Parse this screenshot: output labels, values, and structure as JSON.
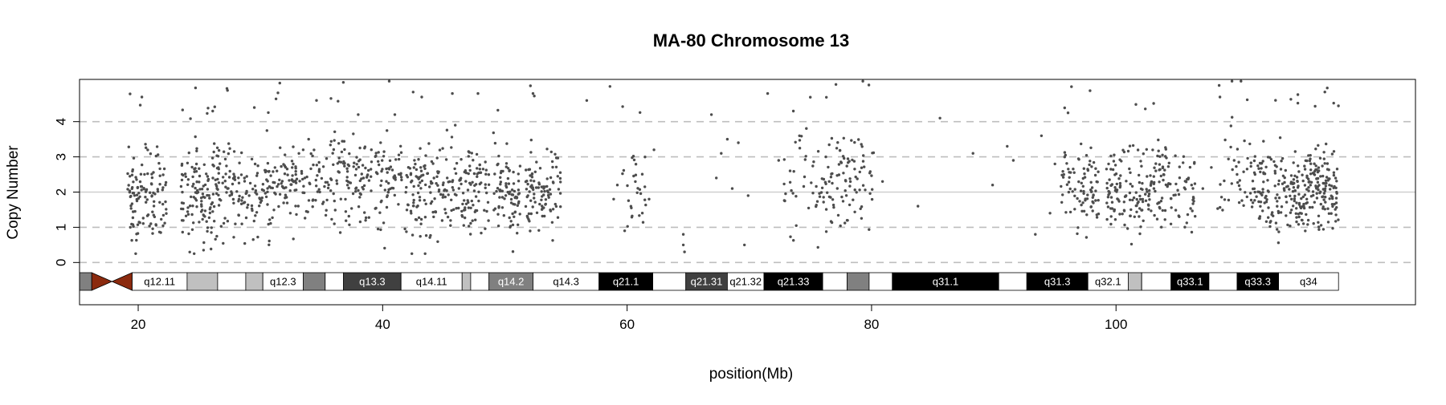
{
  "chart_data": {
    "type": "scatter",
    "title": "MA-80  Chromosome 13",
    "xlabel": "position(Mb)",
    "ylabel": "Copy Number",
    "xlim": [
      15.2,
      124.5
    ],
    "ylim": [
      -1.2,
      5.2
    ],
    "x_ticks": [
      20,
      40,
      60,
      80,
      100
    ],
    "y_ticks": [
      0,
      1,
      2,
      3,
      4
    ],
    "dashed_reference_lines": [
      0,
      1,
      3,
      4
    ],
    "solid_reference_line": 2,
    "colors": {
      "points": "#4d4d4d",
      "dashed_lines": "#bebebe",
      "solid_line": "#cfcfcf",
      "centromere": "#8b2a0e"
    },
    "ideogram": {
      "centromere_mb": [
        16.2,
        19.5
      ],
      "bands": [
        {
          "start": 15.2,
          "end": 16.2,
          "color": "#808080",
          "label": ""
        },
        {
          "start": 19.5,
          "end": 24.0,
          "color": "#ffffff",
          "label": "q12.11"
        },
        {
          "start": 24.0,
          "end": 26.5,
          "color": "#c0c0c0",
          "label": ""
        },
        {
          "start": 26.5,
          "end": 28.8,
          "color": "#ffffff",
          "label": ""
        },
        {
          "start": 28.8,
          "end": 30.2,
          "color": "#c0c0c0",
          "label": ""
        },
        {
          "start": 30.2,
          "end": 33.5,
          "color": "#ffffff",
          "label": "q12.3"
        },
        {
          "start": 33.5,
          "end": 35.3,
          "color": "#808080",
          "label": ""
        },
        {
          "start": 35.3,
          "end": 36.8,
          "color": "#ffffff",
          "label": ""
        },
        {
          "start": 36.8,
          "end": 41.5,
          "color": "#404040",
          "label": "q13.3"
        },
        {
          "start": 41.5,
          "end": 46.5,
          "color": "#ffffff",
          "label": "q14.11"
        },
        {
          "start": 46.5,
          "end": 47.2,
          "color": "#c0c0c0",
          "label": ""
        },
        {
          "start": 47.2,
          "end": 48.7,
          "color": "#ffffff",
          "label": ""
        },
        {
          "start": 48.7,
          "end": 52.3,
          "color": "#808080",
          "label": "q14.2"
        },
        {
          "start": 52.3,
          "end": 57.7,
          "color": "#ffffff",
          "label": "q14.3"
        },
        {
          "start": 57.7,
          "end": 62.1,
          "color": "#000000",
          "label": "q21.1"
        },
        {
          "start": 62.1,
          "end": 64.8,
          "color": "#ffffff",
          "label": ""
        },
        {
          "start": 64.8,
          "end": 68.2,
          "color": "#404040",
          "label": "q21.31"
        },
        {
          "start": 68.2,
          "end": 71.2,
          "color": "#ffffff",
          "label": "q21.32"
        },
        {
          "start": 71.2,
          "end": 76.0,
          "color": "#000000",
          "label": "q21.33"
        },
        {
          "start": 76.0,
          "end": 78.0,
          "color": "#ffffff",
          "label": ""
        },
        {
          "start": 78.0,
          "end": 79.8,
          "color": "#808080",
          "label": ""
        },
        {
          "start": 79.8,
          "end": 81.7,
          "color": "#ffffff",
          "label": ""
        },
        {
          "start": 81.7,
          "end": 90.4,
          "color": "#000000",
          "label": "q31.1"
        },
        {
          "start": 90.4,
          "end": 92.7,
          "color": "#ffffff",
          "label": ""
        },
        {
          "start": 92.7,
          "end": 97.7,
          "color": "#000000",
          "label": "q31.3"
        },
        {
          "start": 97.7,
          "end": 101.0,
          "color": "#ffffff",
          "label": "q32.1"
        },
        {
          "start": 101.0,
          "end": 102.1,
          "color": "#c0c0c0",
          "label": ""
        },
        {
          "start": 102.1,
          "end": 104.5,
          "color": "#ffffff",
          "label": ""
        },
        {
          "start": 104.5,
          "end": 107.6,
          "color": "#000000",
          "label": "q33.1"
        },
        {
          "start": 107.6,
          "end": 109.9,
          "color": "#ffffff",
          "label": ""
        },
        {
          "start": 109.9,
          "end": 113.3,
          "color": "#000000",
          "label": "q33.3"
        },
        {
          "start": 113.3,
          "end": 118.2,
          "color": "#ffffff",
          "label": "q34"
        }
      ]
    },
    "clusters": [
      {
        "x": [
          19.0,
          22.3
        ],
        "n": 120,
        "mean": 1.8,
        "sd": 0.6
      },
      {
        "x": [
          23.5,
          26.8
        ],
        "n": 140,
        "mean": 2.0,
        "sd": 0.7
      },
      {
        "x": [
          26.8,
          31.0
        ],
        "n": 120,
        "mean": 2.0,
        "sd": 0.6
      },
      {
        "x": [
          31.0,
          36.5
        ],
        "n": 140,
        "mean": 2.2,
        "sd": 0.6
      },
      {
        "x": [
          36.5,
          41.8
        ],
        "n": 140,
        "mean": 2.4,
        "sd": 0.6
      },
      {
        "x": [
          41.8,
          45.2
        ],
        "n": 110,
        "mean": 2.0,
        "sd": 0.7
      },
      {
        "x": [
          45.2,
          48.7
        ],
        "n": 110,
        "mean": 2.1,
        "sd": 0.7
      },
      {
        "x": [
          49.0,
          51.3
        ],
        "n": 85,
        "mean": 1.9,
        "sd": 0.6
      },
      {
        "x": [
          51.7,
          54.6
        ],
        "n": 100,
        "mean": 2.1,
        "sd": 0.6
      },
      {
        "x": [
          59.6,
          61.6
        ],
        "n": 30,
        "mean": 2.0,
        "sd": 0.6
      },
      {
        "x": [
          72.8,
          76.5
        ],
        "n": 45,
        "mean": 2.2,
        "sd": 0.7
      },
      {
        "x": [
          76.2,
          80.2
        ],
        "n": 90,
        "mean": 2.4,
        "sd": 0.7
      },
      {
        "x": [
          95.5,
          98.6
        ],
        "n": 90,
        "mean": 2.1,
        "sd": 0.6
      },
      {
        "x": [
          99.2,
          102.5
        ],
        "n": 110,
        "mean": 2.0,
        "sd": 0.6
      },
      {
        "x": [
          102.5,
          106.5
        ],
        "n": 110,
        "mean": 2.2,
        "sd": 0.6
      },
      {
        "x": [
          108.3,
          111.3
        ],
        "n": 45,
        "mean": 2.4,
        "sd": 0.7
      },
      {
        "x": [
          111.3,
          114.3
        ],
        "n": 100,
        "mean": 2.0,
        "sd": 0.6
      },
      {
        "x": [
          114.3,
          118.2
        ],
        "n": 200,
        "mean": 2.0,
        "sd": 0.6
      }
    ],
    "sparse_points": [
      [
        20.3,
        4.7
      ],
      [
        26.1,
        4.3
      ],
      [
        29.5,
        4.4
      ],
      [
        38.0,
        4.2
      ],
      [
        41.0,
        4.2
      ],
      [
        43.2,
        4.7
      ],
      [
        45.7,
        4.8
      ],
      [
        47.8,
        4.8
      ],
      [
        52.3,
        4.8
      ],
      [
        56.7,
        4.6
      ],
      [
        58.6,
        5.0
      ],
      [
        58.9,
        1.8
      ],
      [
        59.2,
        2.2
      ],
      [
        59.8,
        0.9
      ],
      [
        61.8,
        1.8
      ],
      [
        62.2,
        3.2
      ],
      [
        64.6,
        0.8
      ],
      [
        64.6,
        0.5
      ],
      [
        64.7,
        0.3
      ],
      [
        66.9,
        4.2
      ],
      [
        67.3,
        2.4
      ],
      [
        67.7,
        3.1
      ],
      [
        68.2,
        3.5
      ],
      [
        68.6,
        2.1
      ],
      [
        69.1,
        3.4
      ],
      [
        69.6,
        0.5
      ],
      [
        69.9,
        1.9
      ],
      [
        71.5,
        4.8
      ],
      [
        72.4,
        2.9
      ],
      [
        73.6,
        4.3
      ],
      [
        74.1,
        3.6
      ],
      [
        80.9,
        2.3
      ],
      [
        83.8,
        1.6
      ],
      [
        85.6,
        4.1
      ],
      [
        88.3,
        3.1
      ],
      [
        89.9,
        2.2
      ],
      [
        91.1,
        3.3
      ],
      [
        91.6,
        2.9
      ],
      [
        93.4,
        0.8
      ],
      [
        93.9,
        3.6
      ],
      [
        94.6,
        1.4
      ],
      [
        95.0,
        2.8
      ],
      [
        107.1,
        2.1
      ],
      [
        107.8,
        2.7
      ],
      [
        108.5,
        4.7
      ],
      [
        109.9,
        2.5
      ]
    ]
  }
}
